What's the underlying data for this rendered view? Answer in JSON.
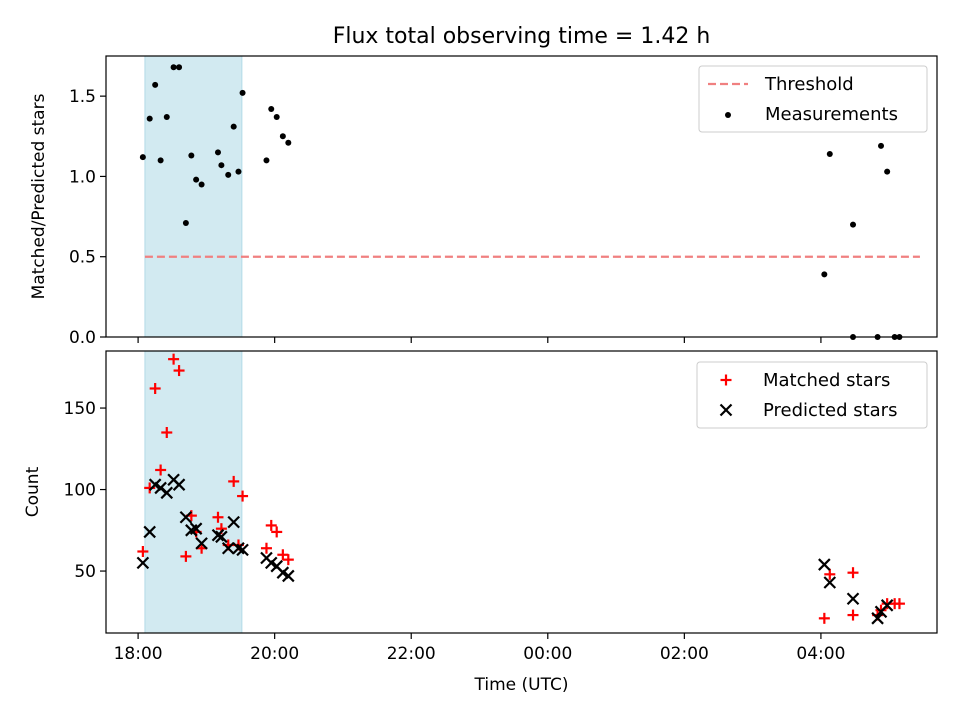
{
  "chart_data": {
    "title": "Flux total observing time = 1.42 h",
    "xlabel": "Time (UTC)",
    "x_tick_labels": [
      "18:00",
      "20:00",
      "22:00",
      "00:00",
      "02:00",
      "04:00"
    ],
    "x_tick_hours": [
      18,
      20,
      22,
      24,
      26,
      28
    ],
    "xlim_hours": [
      17.53,
      29.7
    ],
    "shaded_band_hours": [
      18.1,
      19.52
    ],
    "shaded_color": "#add8e6",
    "panels": [
      {
        "type": "scatter",
        "ylabel": "Matched/Predicted stars",
        "ylim": [
          0,
          1.75
        ],
        "yticks": [
          0.0,
          0.5,
          1.0,
          1.5
        ],
        "ytick_labels": [
          "0.0",
          "0.5",
          "1.0",
          "1.5"
        ],
        "threshold": {
          "name": "Threshold",
          "value": 0.5,
          "x_range": [
            18.1,
            29.45
          ],
          "color": "#f08080"
        },
        "series": [
          {
            "name": "Measurements",
            "color": "#000000",
            "marker": "dot",
            "points": [
              [
                18.07,
                1.12
              ],
              [
                18.17,
                1.36
              ],
              [
                18.25,
                1.57
              ],
              [
                18.33,
                1.1
              ],
              [
                18.42,
                1.37
              ],
              [
                18.52,
                1.68
              ],
              [
                18.6,
                1.68
              ],
              [
                18.7,
                0.71
              ],
              [
                18.78,
                1.13
              ],
              [
                18.85,
                0.98
              ],
              [
                18.93,
                0.95
              ],
              [
                19.17,
                1.15
              ],
              [
                19.22,
                1.07
              ],
              [
                19.32,
                1.01
              ],
              [
                19.4,
                1.31
              ],
              [
                19.47,
                1.03
              ],
              [
                19.53,
                1.52
              ],
              [
                19.88,
                1.1
              ],
              [
                19.95,
                1.42
              ],
              [
                20.03,
                1.37
              ],
              [
                20.12,
                1.25
              ],
              [
                20.2,
                1.21
              ],
              [
                28.05,
                0.39
              ],
              [
                28.13,
                1.14
              ],
              [
                28.47,
                0.7
              ],
              [
                28.47,
                0.0
              ],
              [
                28.83,
                0.0
              ],
              [
                28.88,
                1.19
              ],
              [
                28.97,
                1.03
              ],
              [
                29.08,
                0.0
              ],
              [
                29.15,
                0.0
              ]
            ]
          }
        ]
      },
      {
        "type": "scatter",
        "ylabel": "Count",
        "ylim": [
          12,
          185
        ],
        "yticks": [
          50,
          100,
          150
        ],
        "ytick_labels": [
          "50",
          "100",
          "150"
        ],
        "series": [
          {
            "name": "Matched stars",
            "color": "#ff0000",
            "marker": "plus",
            "points": [
              [
                18.07,
                62
              ],
              [
                18.17,
                101
              ],
              [
                18.25,
                162
              ],
              [
                18.33,
                112
              ],
              [
                18.42,
                135
              ],
              [
                18.52,
                180
              ],
              [
                18.6,
                173
              ],
              [
                18.7,
                59
              ],
              [
                18.78,
                84
              ],
              [
                18.85,
                74
              ],
              [
                18.93,
                64
              ],
              [
                19.17,
                83
              ],
              [
                19.22,
                76
              ],
              [
                19.32,
                66
              ],
              [
                19.4,
                105
              ],
              [
                19.47,
                66
              ],
              [
                19.53,
                96
              ],
              [
                19.88,
                64
              ],
              [
                19.95,
                78
              ],
              [
                20.03,
                74
              ],
              [
                20.12,
                60
              ],
              [
                20.2,
                57
              ],
              [
                28.05,
                21
              ],
              [
                28.13,
                48
              ],
              [
                28.47,
                49
              ],
              [
                28.47,
                23
              ],
              [
                28.83,
                23
              ],
              [
                28.88,
                26
              ],
              [
                28.97,
                30
              ],
              [
                29.08,
                30
              ],
              [
                29.15,
                30
              ]
            ]
          },
          {
            "name": "Predicted stars",
            "color": "#000000",
            "marker": "x",
            "points": [
              [
                18.07,
                55
              ],
              [
                18.17,
                74
              ],
              [
                18.25,
                103
              ],
              [
                18.33,
                101
              ],
              [
                18.42,
                98
              ],
              [
                18.52,
                106
              ],
              [
                18.6,
                103
              ],
              [
                18.7,
                83
              ],
              [
                18.78,
                75
              ],
              [
                18.85,
                76
              ],
              [
                18.93,
                67
              ],
              [
                19.17,
                72
              ],
              [
                19.22,
                71
              ],
              [
                19.32,
                64
              ],
              [
                19.4,
                80
              ],
              [
                19.47,
                64
              ],
              [
                19.53,
                63
              ],
              [
                19.88,
                58
              ],
              [
                19.95,
                55
              ],
              [
                20.03,
                53
              ],
              [
                20.12,
                49
              ],
              [
                20.2,
                47
              ],
              [
                28.05,
                54
              ],
              [
                28.13,
                43
              ],
              [
                28.47,
                33
              ],
              [
                28.83,
                21
              ],
              [
                28.88,
                25
              ],
              [
                28.97,
                29
              ]
            ]
          }
        ]
      }
    ]
  }
}
